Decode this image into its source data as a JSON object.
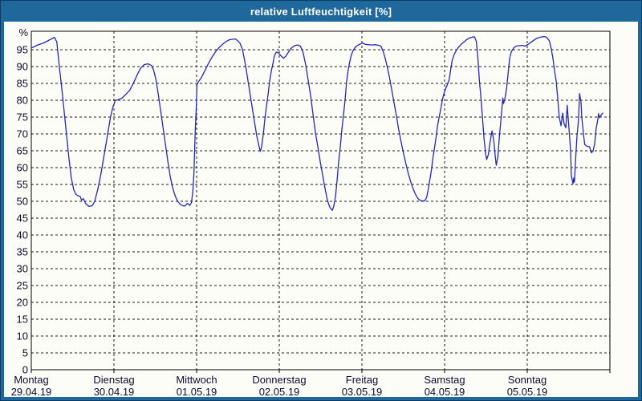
{
  "window": {
    "title": "relative Luftfeuchtigkeit [%]"
  },
  "colors": {
    "titlebar": "#1e689c",
    "window_border": "#0d3d63",
    "plot_bg": "#fdfdf7",
    "line": "#2228b8",
    "grid": "#1a1a1a",
    "frame": "#000000",
    "label": "#0a0a30",
    "title_text": "#ffffff"
  },
  "chart_data": {
    "type": "line",
    "title": "relative Luftfeuchtigkeit [%]",
    "ylabel": "%",
    "xlabel": "",
    "ylim": [
      0,
      100.5
    ],
    "xlim": [
      0,
      168
    ],
    "x_unit": "hours since Montag 29.04.19 00:00",
    "grid": "dashed horizontal every 5%, dashed vertical at day boundaries",
    "legend_position": "none",
    "yticks": [
      0,
      5,
      10,
      15,
      20,
      25,
      30,
      35,
      40,
      45,
      50,
      55,
      60,
      65,
      70,
      75,
      80,
      85,
      90,
      95
    ],
    "days": [
      {
        "name": "Montag",
        "date": "29.04.19"
      },
      {
        "name": "Dienstag",
        "date": "30.04.19"
      },
      {
        "name": "Mittwoch",
        "date": "01.05.19"
      },
      {
        "name": "Donnerstag",
        "date": "02.05.19"
      },
      {
        "name": "Freitag",
        "date": "03.05.19"
      },
      {
        "name": "Samstag",
        "date": "04.05.19"
      },
      {
        "name": "Sonntag",
        "date": "05.05.19"
      }
    ],
    "series": [
      {
        "name": "relative Luftfeuchtigkeit",
        "points": [
          [
            0.0,
            95.5
          ],
          [
            1.6,
            96.3
          ],
          [
            3.3,
            96.9
          ],
          [
            4.6,
            97.5
          ],
          [
            5.8,
            98.2
          ],
          [
            6.7,
            98.7
          ],
          [
            7.4,
            97.3
          ],
          [
            8.1,
            90.2
          ],
          [
            8.8,
            84.0
          ],
          [
            9.5,
            77.0
          ],
          [
            10.2,
            70.0
          ],
          [
            10.9,
            63.0
          ],
          [
            11.6,
            57.0
          ],
          [
            12.3,
            53.5
          ],
          [
            13.0,
            52.0
          ],
          [
            13.7,
            51.6
          ],
          [
            14.2,
            51.4
          ],
          [
            14.6,
            50.3
          ],
          [
            15.1,
            50.8
          ],
          [
            15.8,
            49.3
          ],
          [
            16.7,
            48.5
          ],
          [
            17.7,
            48.7
          ],
          [
            18.4,
            50.0
          ],
          [
            19.3,
            53.5
          ],
          [
            20.2,
            58.0
          ],
          [
            21.1,
            63.5
          ],
          [
            22.1,
            69.5
          ],
          [
            23.0,
            75.0
          ],
          [
            23.7,
            78.0
          ],
          [
            24.4,
            79.9
          ],
          [
            25.3,
            80.2
          ],
          [
            26.3,
            80.6
          ],
          [
            27.4,
            81.7
          ],
          [
            28.6,
            83.0
          ],
          [
            29.7,
            85.2
          ],
          [
            30.9,
            87.9
          ],
          [
            31.8,
            89.6
          ],
          [
            32.8,
            90.6
          ],
          [
            33.9,
            90.8
          ],
          [
            34.9,
            90.3
          ],
          [
            35.5,
            89.0
          ],
          [
            36.2,
            86.0
          ],
          [
            36.9,
            81.5
          ],
          [
            37.6,
            76.5
          ],
          [
            38.3,
            71.5
          ],
          [
            39.0,
            66.5
          ],
          [
            39.7,
            61.5
          ],
          [
            40.4,
            57.0
          ],
          [
            41.1,
            53.8
          ],
          [
            41.8,
            51.5
          ],
          [
            42.5,
            50.0
          ],
          [
            43.2,
            49.2
          ],
          [
            43.9,
            48.7
          ],
          [
            44.6,
            48.6
          ],
          [
            45.3,
            49.4
          ],
          [
            46.0,
            48.8
          ],
          [
            46.5,
            49.6
          ],
          [
            46.9,
            53.0
          ],
          [
            47.2,
            58.0
          ],
          [
            47.4,
            64.0
          ],
          [
            47.6,
            71.0
          ],
          [
            47.9,
            78.0
          ],
          [
            48.1,
            84.5
          ],
          [
            48.6,
            85.6
          ],
          [
            49.3,
            86.6
          ],
          [
            50.0,
            88.0
          ],
          [
            50.9,
            89.8
          ],
          [
            51.8,
            91.6
          ],
          [
            52.7,
            93.2
          ],
          [
            53.7,
            94.7
          ],
          [
            54.6,
            95.7
          ],
          [
            55.5,
            96.6
          ],
          [
            56.5,
            97.4
          ],
          [
            57.4,
            97.9
          ],
          [
            58.3,
            98.1
          ],
          [
            59.3,
            98.2
          ],
          [
            59.9,
            97.7
          ],
          [
            60.6,
            96.9
          ],
          [
            61.3,
            95.1
          ],
          [
            62.0,
            91.5
          ],
          [
            62.7,
            87.2
          ],
          [
            63.4,
            82.6
          ],
          [
            64.1,
            78.1
          ],
          [
            64.8,
            73.6
          ],
          [
            65.5,
            69.2
          ],
          [
            66.0,
            66.8
          ],
          [
            66.5,
            64.8
          ],
          [
            66.9,
            66.3
          ],
          [
            67.4,
            70.3
          ],
          [
            67.8,
            74.3
          ],
          [
            68.3,
            78.3
          ],
          [
            68.8,
            82.2
          ],
          [
            69.2,
            85.7
          ],
          [
            69.7,
            88.7
          ],
          [
            70.2,
            91.2
          ],
          [
            70.6,
            93.2
          ],
          [
            71.1,
            94.3
          ],
          [
            71.8,
            94.0
          ],
          [
            72.5,
            93.2
          ],
          [
            73.2,
            92.5
          ],
          [
            73.9,
            93.1
          ],
          [
            74.6,
            94.2
          ],
          [
            75.3,
            95.3
          ],
          [
            76.0,
            95.9
          ],
          [
            76.7,
            96.3
          ],
          [
            77.4,
            96.4
          ],
          [
            78.1,
            96.1
          ],
          [
            78.8,
            94.6
          ],
          [
            79.2,
            92.8
          ],
          [
            79.7,
            90.4
          ],
          [
            80.4,
            85.8
          ],
          [
            81.1,
            81.3
          ],
          [
            81.8,
            75.7
          ],
          [
            82.5,
            70.3
          ],
          [
            83.2,
            66.1
          ],
          [
            83.9,
            61.7
          ],
          [
            84.6,
            57.7
          ],
          [
            85.3,
            53.7
          ],
          [
            86.0,
            50.2
          ],
          [
            86.7,
            48.2
          ],
          [
            87.4,
            47.3
          ],
          [
            87.8,
            48.4
          ],
          [
            88.3,
            51.3
          ],
          [
            88.8,
            56.4
          ],
          [
            89.2,
            61.2
          ],
          [
            89.7,
            66.0
          ],
          [
            90.1,
            70.6
          ],
          [
            90.6,
            75.2
          ],
          [
            91.1,
            80.0
          ],
          [
            91.5,
            85.0
          ],
          [
            92.0,
            89.0
          ],
          [
            92.5,
            91.6
          ],
          [
            92.9,
            93.4
          ],
          [
            93.6,
            95.1
          ],
          [
            94.3,
            96.0
          ],
          [
            95.3,
            96.6
          ],
          [
            96.2,
            97.0
          ],
          [
            96.9,
            96.6
          ],
          [
            97.8,
            96.5
          ],
          [
            99.0,
            96.4
          ],
          [
            99.9,
            96.5
          ],
          [
            100.8,
            96.3
          ],
          [
            101.5,
            96.1
          ],
          [
            102.2,
            94.4
          ],
          [
            102.7,
            92.6
          ],
          [
            103.2,
            90.6
          ],
          [
            103.9,
            87.3
          ],
          [
            104.6,
            83.4
          ],
          [
            105.3,
            79.4
          ],
          [
            106.0,
            75.5
          ],
          [
            106.6,
            71.7
          ],
          [
            107.3,
            68.0
          ],
          [
            108.0,
            64.6
          ],
          [
            108.7,
            61.4
          ],
          [
            109.4,
            58.5
          ],
          [
            110.1,
            56.0
          ],
          [
            110.8,
            53.9
          ],
          [
            111.5,
            52.2
          ],
          [
            112.2,
            50.9
          ],
          [
            112.9,
            50.3
          ],
          [
            113.6,
            50.1
          ],
          [
            114.3,
            50.2
          ],
          [
            114.8,
            51.2
          ],
          [
            115.2,
            53.3
          ],
          [
            115.7,
            56.2
          ],
          [
            116.2,
            59.4
          ],
          [
            116.6,
            62.8
          ],
          [
            117.1,
            66.1
          ],
          [
            117.6,
            69.5
          ],
          [
            118.0,
            72.7
          ],
          [
            118.5,
            75.4
          ],
          [
            119.0,
            78.0
          ],
          [
            119.4,
            80.4
          ],
          [
            119.9,
            82.3
          ],
          [
            120.4,
            83.7
          ],
          [
            120.8,
            84.6
          ],
          [
            121.3,
            86.0
          ],
          [
            121.8,
            89.2
          ],
          [
            122.2,
            91.8
          ],
          [
            122.7,
            93.4
          ],
          [
            123.4,
            94.8
          ],
          [
            124.1,
            95.8
          ],
          [
            124.8,
            96.6
          ],
          [
            125.5,
            97.2
          ],
          [
            126.2,
            97.8
          ],
          [
            126.9,
            98.3
          ],
          [
            127.6,
            98.6
          ],
          [
            128.3,
            98.8
          ],
          [
            128.7,
            98.8
          ],
          [
            129.2,
            97.5
          ],
          [
            129.6,
            93.5
          ],
          [
            130.1,
            86.0
          ],
          [
            130.6,
            80.2
          ],
          [
            131.0,
            74.8
          ],
          [
            131.5,
            68.0
          ],
          [
            132.0,
            63.5
          ],
          [
            132.2,
            62.4
          ],
          [
            132.7,
            63.8
          ],
          [
            133.1,
            66.8
          ],
          [
            133.6,
            70.0
          ],
          [
            133.8,
            70.9
          ],
          [
            134.3,
            67.8
          ],
          [
            134.8,
            62.5
          ],
          [
            135.0,
            60.7
          ],
          [
            135.5,
            63.3
          ],
          [
            135.9,
            69.0
          ],
          [
            136.4,
            74.6
          ],
          [
            136.9,
            80.7
          ],
          [
            137.1,
            79.0
          ],
          [
            137.5,
            80.3
          ],
          [
            138.0,
            83.6
          ],
          [
            138.5,
            88.5
          ],
          [
            138.9,
            92.5
          ],
          [
            139.4,
            94.5
          ],
          [
            140.1,
            95.6
          ],
          [
            140.8,
            96.1
          ],
          [
            141.7,
            96.2
          ],
          [
            142.6,
            96.3
          ],
          [
            143.3,
            96.1
          ],
          [
            144.0,
            96.4
          ],
          [
            144.9,
            97.1
          ],
          [
            145.9,
            97.8
          ],
          [
            146.8,
            98.4
          ],
          [
            147.7,
            98.7
          ],
          [
            148.7,
            98.9
          ],
          [
            149.4,
            98.8
          ],
          [
            150.1,
            98.1
          ],
          [
            150.5,
            97.4
          ],
          [
            151.0,
            95.2
          ],
          [
            151.5,
            92.1
          ],
          [
            151.9,
            89.0
          ],
          [
            152.4,
            85.6
          ],
          [
            152.9,
            80.0
          ],
          [
            153.3,
            74.9
          ],
          [
            153.8,
            72.4
          ],
          [
            154.3,
            76.2
          ],
          [
            154.7,
            73.0
          ],
          [
            155.2,
            71.8
          ],
          [
            155.6,
            78.5
          ],
          [
            156.1,
            71.9
          ],
          [
            156.6,
            64.8
          ],
          [
            156.8,
            57.6
          ],
          [
            157.3,
            55.2
          ],
          [
            157.5,
            56.9
          ],
          [
            157.7,
            55.7
          ],
          [
            158.0,
            61.7
          ],
          [
            158.4,
            68.8
          ],
          [
            158.9,
            74.3
          ],
          [
            159.2,
            82.0
          ],
          [
            159.6,
            79.5
          ],
          [
            159.8,
            75.5
          ],
          [
            160.3,
            70.0
          ],
          [
            160.7,
            66.8
          ],
          [
            161.4,
            66.3
          ],
          [
            162.1,
            66.2
          ],
          [
            162.6,
            64.4
          ],
          [
            163.1,
            64.9
          ],
          [
            163.6,
            67.2
          ],
          [
            164.0,
            71.5
          ],
          [
            164.5,
            74.4
          ],
          [
            164.7,
            76.0
          ],
          [
            165.0,
            74.8
          ],
          [
            165.4,
            75.5
          ],
          [
            165.9,
            76.2
          ]
        ]
      }
    ]
  }
}
